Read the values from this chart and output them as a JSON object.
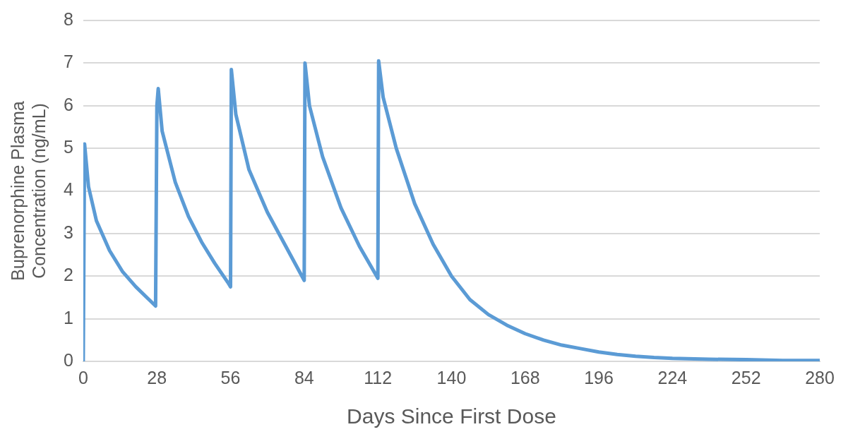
{
  "chart_data": {
    "type": "line",
    "xlabel": "Days Since First Dose",
    "ylabel": "Buprenorphine Plasma Concentration (ng/mL)",
    "xlim": [
      0,
      280
    ],
    "xticks": [
      0,
      28,
      56,
      84,
      112,
      140,
      168,
      196,
      224,
      252,
      280
    ],
    "ylim": [
      0,
      8
    ],
    "yticks": [
      0,
      1,
      2,
      3,
      4,
      5,
      6,
      7,
      8
    ],
    "grid": "y",
    "marker": "none",
    "line_style": "solid",
    "series": [
      {
        "color": "#5b9bd5",
        "x": [
          0,
          0.5,
          2,
          5,
          10,
          15,
          20,
          25,
          27.5,
          28,
          28.5,
          30,
          35,
          40,
          45,
          50,
          55,
          56,
          56.3,
          58,
          63,
          70,
          77,
          84,
          84.3,
          86,
          91,
          98,
          105,
          112,
          112.3,
          114,
          119,
          126,
          133,
          140,
          147,
          154,
          161,
          168,
          175,
          182,
          189,
          196,
          203,
          210,
          217,
          224,
          238,
          252,
          266,
          280
        ],
        "values": [
          0,
          5.1,
          4.1,
          3.3,
          2.6,
          2.1,
          1.75,
          1.45,
          1.3,
          6.0,
          6.4,
          5.4,
          4.2,
          3.4,
          2.8,
          2.3,
          1.85,
          1.75,
          6.85,
          5.8,
          4.5,
          3.5,
          2.7,
          1.9,
          7.0,
          6.0,
          4.8,
          3.6,
          2.7,
          1.95,
          7.05,
          6.2,
          5.0,
          3.7,
          2.75,
          2.0,
          1.45,
          1.1,
          0.85,
          0.65,
          0.5,
          0.38,
          0.3,
          0.22,
          0.16,
          0.12,
          0.09,
          0.07,
          0.05,
          0.04,
          0.02,
          0.02
        ]
      }
    ]
  }
}
